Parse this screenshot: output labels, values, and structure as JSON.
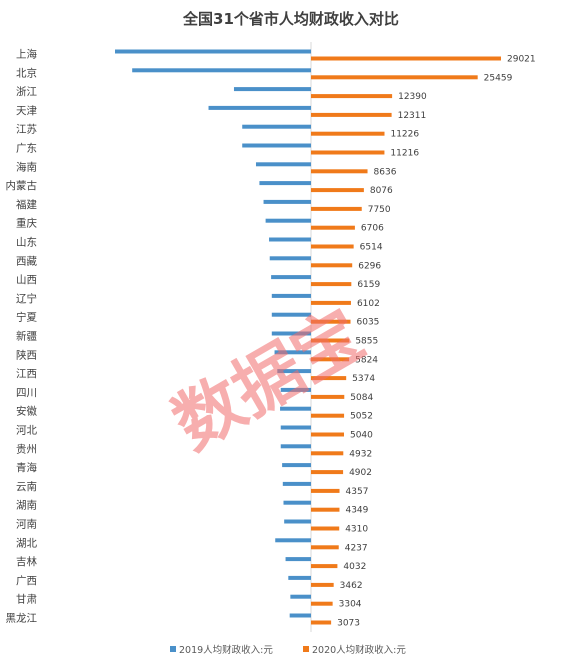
{
  "chart_data": {
    "type": "bar",
    "orientation": "horizontal-diverging",
    "title": "全国31个省市人均财政收入对比",
    "categories": [
      "上海",
      "北京",
      "浙江",
      "天津",
      "江苏",
      "广东",
      "海南",
      "内蒙古",
      "福建",
      "重庆",
      "山东",
      "西藏",
      "山西",
      "辽宁",
      "宁夏",
      "新疆",
      "陕西",
      "江西",
      "四川",
      "安徽",
      "河北",
      "贵州",
      "青海",
      "云南",
      "湖南",
      "河南",
      "湖北",
      "吉林",
      "广西",
      "甘肃",
      "黑龙江"
    ],
    "series": [
      {
        "name": "2019人均财政收入:元",
        "color": "#4a90c9",
        "direction": "left",
        "values": [
          28500,
          26000,
          11200,
          14900,
          10000,
          10000,
          8000,
          7500,
          6900,
          6600,
          6100,
          6000,
          5800,
          5700,
          5700,
          5700,
          5300,
          4900,
          4400,
          4500,
          4400,
          4400,
          4200,
          4100,
          4000,
          3900,
          5200,
          3700,
          3300,
          3000,
          3100
        ]
      },
      {
        "name": "2020人均财政收入:元",
        "color": "#f07a1a",
        "direction": "right",
        "values": [
          29021,
          25459,
          12390,
          12311,
          11226,
          11216,
          8636,
          8076,
          7750,
          6706,
          6514,
          6296,
          6159,
          6102,
          6035,
          5855,
          5824,
          5374,
          5084,
          5052,
          5040,
          4932,
          4902,
          4357,
          4349,
          4310,
          4237,
          4032,
          3462,
          3304,
          3073
        ]
      }
    ],
    "legend_position": "bottom",
    "grid": false,
    "watermark": "数据宝"
  }
}
